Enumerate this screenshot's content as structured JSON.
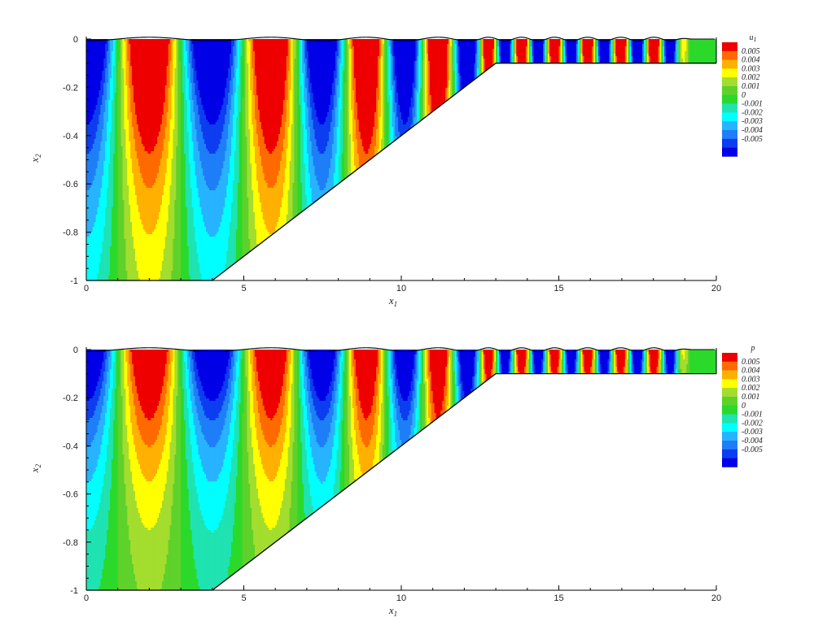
{
  "chart_data": [
    {
      "type": "heatmap",
      "panel_id": "top",
      "variable": "u",
      "variable_sub": "1",
      "xlabel": "x",
      "xlabel_sub": "1",
      "ylabel": "x",
      "ylabel_sub": "2",
      "xlim": [
        0,
        20
      ],
      "ylim": [
        -1,
        0
      ],
      "xticks": [
        0,
        5,
        10,
        15,
        20
      ],
      "yticks": [
        0,
        -0.2,
        -0.4,
        -0.6,
        -0.8,
        -1
      ],
      "levels": [
        0.005,
        0.004,
        0.003,
        0.002,
        0.001,
        0,
        -0.001,
        -0.002,
        -0.003,
        -0.004,
        -0.005
      ],
      "level_labels": [
        "0.005",
        "0.004",
        "0.003",
        "0.002",
        "0.001",
        "0",
        "-0.001",
        "-0.002",
        "-0.003",
        "-0.004",
        "-0.005"
      ],
      "bathymetry": [
        [
          0,
          -1
        ],
        [
          4,
          -1
        ],
        [
          13,
          -0.1
        ],
        [
          20,
          -0.1
        ]
      ],
      "deep_wavelength": 4,
      "shallow_wavelength": 1.05,
      "shallow_start": 12.5,
      "wave_amplitude": 0.005
    },
    {
      "type": "heatmap",
      "panel_id": "bottom",
      "variable": "p",
      "variable_sub": "",
      "xlabel": "x",
      "xlabel_sub": "1",
      "ylabel": "x",
      "ylabel_sub": "2",
      "xlim": [
        0,
        20
      ],
      "ylim": [
        -1,
        0
      ],
      "xticks": [
        0,
        5,
        10,
        15,
        20
      ],
      "yticks": [
        0,
        -0.2,
        -0.4,
        -0.6,
        -0.8,
        -1
      ],
      "levels": [
        0.005,
        0.004,
        0.003,
        0.002,
        0.001,
        0,
        -0.001,
        -0.002,
        -0.003,
        -0.004,
        -0.005
      ],
      "level_labels": [
        "0.005",
        "0.004",
        "0.003",
        "0.002",
        "0.001",
        "0",
        "-0.001",
        "-0.002",
        "-0.003",
        "-0.004",
        "-0.005"
      ],
      "bathymetry": [
        [
          0,
          -1
        ],
        [
          4,
          -1
        ],
        [
          13,
          -0.1
        ],
        [
          20,
          -0.1
        ]
      ],
      "deep_wavelength": 4,
      "shallow_wavelength": 1.05,
      "shallow_start": 12.5,
      "wave_amplitude": 0.005
    }
  ],
  "colors": {
    "palette": [
      "#0000e6",
      "#0d3df0",
      "#1e7ef7",
      "#27b3ff",
      "#00ffff",
      "#1fe3b0",
      "#2bd92b",
      "#5ed12a",
      "#a3dd2e",
      "#ffff00",
      "#ffb000",
      "#ff6a00",
      "#ee0000"
    ]
  }
}
